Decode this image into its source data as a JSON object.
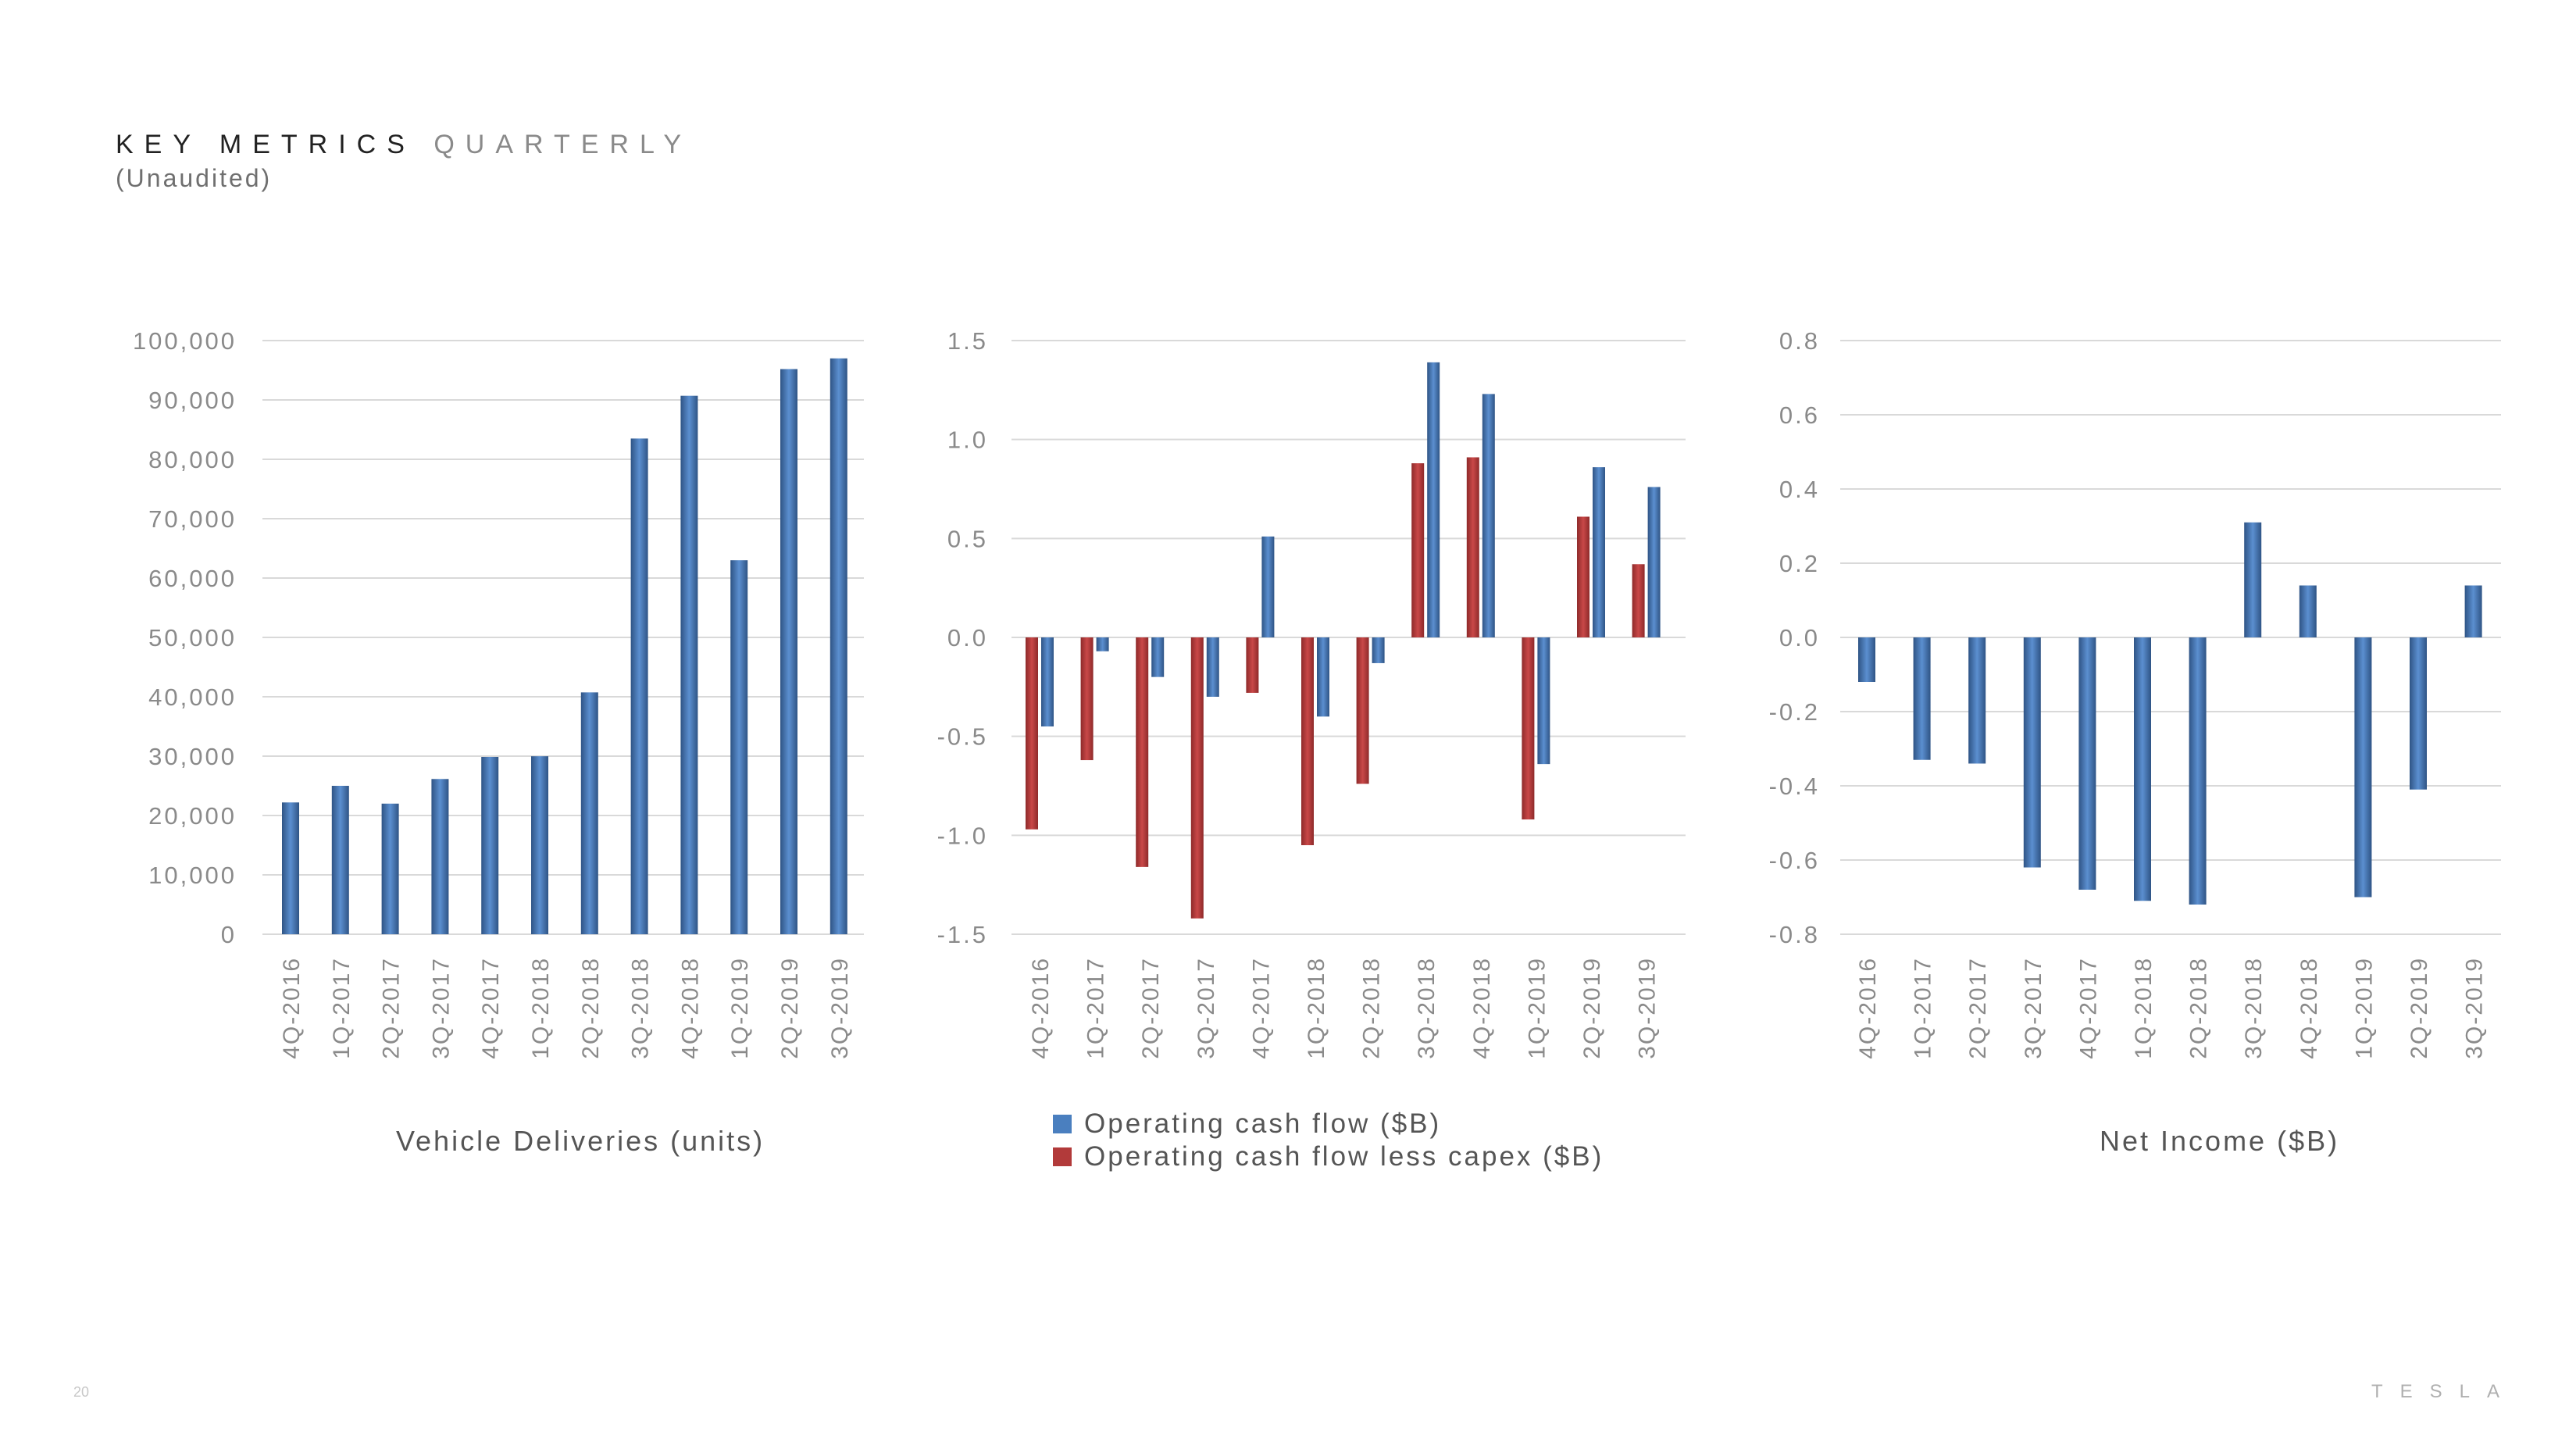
{
  "header": {
    "title": "KEY METRICS",
    "title_suffix": "QUARTERLY",
    "subtitle": "(Unaudited)"
  },
  "footer": {
    "page_number": "20",
    "logo_text": "TESLA"
  },
  "colors": {
    "blue": "#4a7fbf",
    "red": "#b23a3a",
    "grid": "#d9d9d9",
    "tick_label": "#8a8a8a"
  },
  "chart_data": [
    {
      "type": "bar",
      "xlabel": "Vehicle Deliveries (units)",
      "categories": [
        "4Q-2016",
        "1Q-2017",
        "2Q-2017",
        "3Q-2017",
        "4Q-2017",
        "1Q-2018",
        "2Q-2018",
        "3Q-2018",
        "4Q-2018",
        "1Q-2019",
        "2Q-2019",
        "3Q-2019"
      ],
      "series": [
        {
          "values": [
            22200,
            25000,
            22000,
            26150,
            29870,
            29980,
            40740,
            83500,
            90700,
            63000,
            95200,
            97000
          ],
          "color": "#4a7fbf"
        }
      ],
      "ylim": [
        0,
        100000
      ],
      "yticks": [
        0,
        10000,
        20000,
        30000,
        40000,
        50000,
        60000,
        70000,
        80000,
        90000,
        100000
      ],
      "ytick_labels": [
        "0",
        "10,000",
        "20,000",
        "30,000",
        "40,000",
        "50,000",
        "60,000",
        "70,000",
        "80,000",
        "90,000",
        "100,000"
      ],
      "grid": true
    },
    {
      "type": "bar",
      "categories": [
        "4Q-2016",
        "1Q-2017",
        "2Q-2017",
        "3Q-2017",
        "4Q-2017",
        "1Q-2018",
        "2Q-2018",
        "3Q-2018",
        "4Q-2018",
        "1Q-2019",
        "2Q-2019",
        "3Q-2019"
      ],
      "series": [
        {
          "name": "Operating cash flow less capex ($B)",
          "values": [
            -0.97,
            -0.62,
            -1.16,
            -1.42,
            -0.28,
            -1.05,
            -0.74,
            0.88,
            0.91,
            -0.92,
            0.61,
            0.37
          ],
          "color": "#b23a3a"
        },
        {
          "name": "Operating cash flow ($B)",
          "values": [
            -0.45,
            -0.07,
            -0.2,
            -0.3,
            0.51,
            -0.4,
            -0.13,
            1.39,
            1.23,
            -0.64,
            0.86,
            0.76
          ],
          "color": "#4a7fbf"
        }
      ],
      "legend": [
        {
          "label": "Operating cash flow ($B)",
          "color": "#4a7fbf"
        },
        {
          "label": "Operating cash flow less capex ($B)",
          "color": "#b23a3a"
        }
      ],
      "ylim": [
        -1.5,
        1.5
      ],
      "yticks": [
        -1.5,
        -1.0,
        -0.5,
        0.0,
        0.5,
        1.0,
        1.5
      ],
      "ytick_labels": [
        "-1.5",
        "-1.0",
        "-0.5",
        "0.0",
        "0.5",
        "1.0",
        "1.5"
      ],
      "grid": true
    },
    {
      "type": "bar",
      "xlabel": "Net Income ($B)",
      "categories": [
        "4Q-2016",
        "1Q-2017",
        "2Q-2017",
        "3Q-2017",
        "4Q-2017",
        "1Q-2018",
        "2Q-2018",
        "3Q-2018",
        "4Q-2018",
        "1Q-2019",
        "2Q-2019",
        "3Q-2019"
      ],
      "series": [
        {
          "values": [
            -0.12,
            -0.33,
            -0.34,
            -0.62,
            -0.68,
            -0.71,
            -0.72,
            0.31,
            0.14,
            -0.7,
            -0.41,
            0.14
          ],
          "color": "#4a7fbf"
        }
      ],
      "ylim": [
        -0.8,
        0.8
      ],
      "yticks": [
        -0.8,
        -0.6,
        -0.4,
        -0.2,
        0.0,
        0.2,
        0.4,
        0.6,
        0.8
      ],
      "ytick_labels": [
        "-0.8",
        "-0.6",
        "-0.4",
        "-0.2",
        "0.0",
        "0.2",
        "0.4",
        "0.6",
        "0.8"
      ],
      "grid": true
    }
  ]
}
